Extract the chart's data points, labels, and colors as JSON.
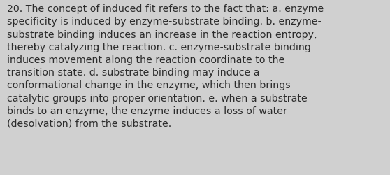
{
  "lines": [
    "20. The concept of induced fit refers to the fact that: a. enzyme",
    "specificity is induced by enzyme-substrate binding. b. enzyme-",
    "substrate binding induces an increase in the reaction entropy,",
    "thereby catalyzing the reaction. c. enzyme-substrate binding",
    "induces movement along the reaction coordinate to the",
    "transition state. d. substrate binding may induce a",
    "conformational change in the enzyme, which then brings",
    "catalytic groups into proper orientation. e. when a substrate",
    "binds to an enzyme, the enzyme induces a loss of water",
    "(desolvation) from the substrate."
  ],
  "background_color": "#d0d0d0",
  "text_color": "#2b2b2b",
  "font_size": 10.2,
  "fig_width": 5.58,
  "fig_height": 2.51,
  "dpi": 100
}
